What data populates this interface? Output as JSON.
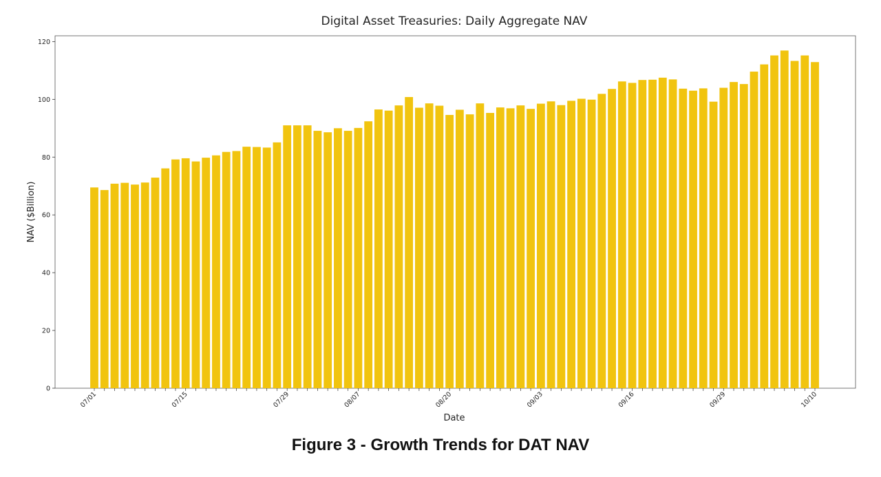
{
  "caption": "Figure 3 - Growth Trends for DAT NAV",
  "chart_data": {
    "type": "bar",
    "title": "Digital Asset Treasuries: Daily Aggregate NAV",
    "xlabel": "Date",
    "ylabel": "NAV ($Billion)",
    "ylim": [
      0,
      122
    ],
    "yticks": [
      0,
      20,
      40,
      60,
      80,
      100,
      120
    ],
    "bar_color": "#F1C40F",
    "x_tick_labels": [
      {
        "index": 0,
        "label": "07/01"
      },
      {
        "index": 9,
        "label": "07/15"
      },
      {
        "index": 19,
        "label": "07/29"
      },
      {
        "index": 26,
        "label": "08/07"
      },
      {
        "index": 35,
        "label": "08/20"
      },
      {
        "index": 44,
        "label": "09/03"
      },
      {
        "index": 53,
        "label": "09/16"
      },
      {
        "index": 62,
        "label": "09/29"
      },
      {
        "index": 71,
        "label": "10/10"
      }
    ],
    "values": [
      69.5,
      68.6,
      70.8,
      71.1,
      70.5,
      71.2,
      72.9,
      76.1,
      79.2,
      79.6,
      78.5,
      79.8,
      80.6,
      81.8,
      82.1,
      83.6,
      83.5,
      83.3,
      85.1,
      91.0,
      91.0,
      91.0,
      89.1,
      88.6,
      90.0,
      89.1,
      90.1,
      92.4,
      96.5,
      96.1,
      97.9,
      100.8,
      97.1,
      98.6,
      97.8,
      94.6,
      96.4,
      94.8,
      98.6,
      95.3,
      97.2,
      96.9,
      97.9,
      96.7,
      98.5,
      99.3,
      98.0,
      99.5,
      100.2,
      99.9,
      101.9,
      103.6,
      106.2,
      105.7,
      106.7,
      106.8,
      107.5,
      106.9,
      103.7,
      103.0,
      103.8,
      99.2,
      104.0,
      106.0,
      105.3,
      109.6,
      112.1,
      115.2,
      116.9,
      113.3,
      115.2,
      112.9
    ]
  }
}
